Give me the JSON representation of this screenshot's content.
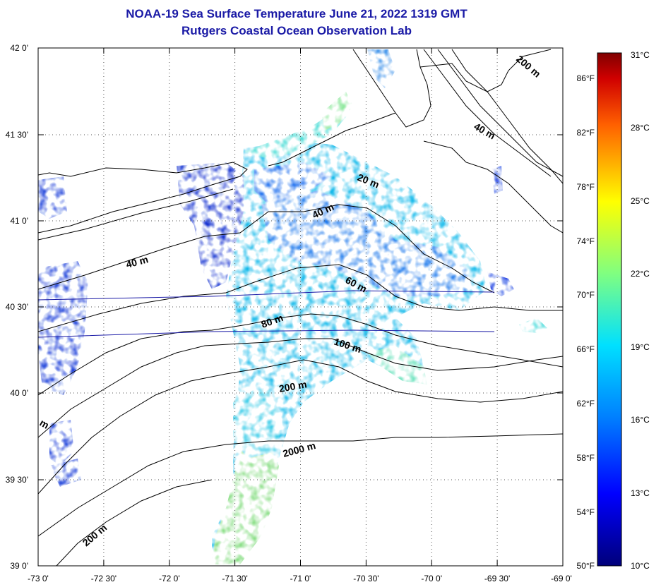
{
  "header": {
    "title": "NOAA-19 Sea Surface Temperature June 21, 2022 1319 GMT",
    "subtitle": "Rutgers Coastal Ocean Observation Lab"
  },
  "map": {
    "lon_range": [
      -73.0,
      -69.0
    ],
    "lat_range": [
      39.0,
      42.0
    ],
    "lon_ticks": [
      "-73 0'",
      "-72 30'",
      "-72 0'",
      "-71 30'",
      "-71 0'",
      "-70 30'",
      "-70 0'",
      "-69 30'",
      "-69 0'"
    ],
    "lat_ticks": [
      "39 0'",
      "39 30'",
      "40 0'",
      "40 30'",
      "41 0'",
      "41 30'",
      "42 0'"
    ],
    "grid": "dotted",
    "isobath_labels": [
      "20 m",
      "40 m",
      "40 m",
      "60 m",
      "80 m",
      "100 m",
      "200 m",
      "200 m",
      "2000 m",
      "200 m",
      "40 m",
      "m"
    ]
  },
  "colorbar": {
    "celsius_labels": [
      "31°C",
      "28°C",
      "25°C",
      "22°C",
      "19°C",
      "16°C",
      "13°C",
      "10°C"
    ],
    "fahrenheit_labels": [
      "86°F",
      "82°F",
      "78°F",
      "74°F",
      "70°F",
      "66°F",
      "62°F",
      "58°F",
      "54°F",
      "50°F"
    ],
    "min_c": 10,
    "max_c": 31,
    "colors": [
      "#00007a",
      "#0000ff",
      "#0080ff",
      "#00e0ff",
      "#80ff80",
      "#ffff00",
      "#ff8000",
      "#ff0000",
      "#800000"
    ]
  }
}
